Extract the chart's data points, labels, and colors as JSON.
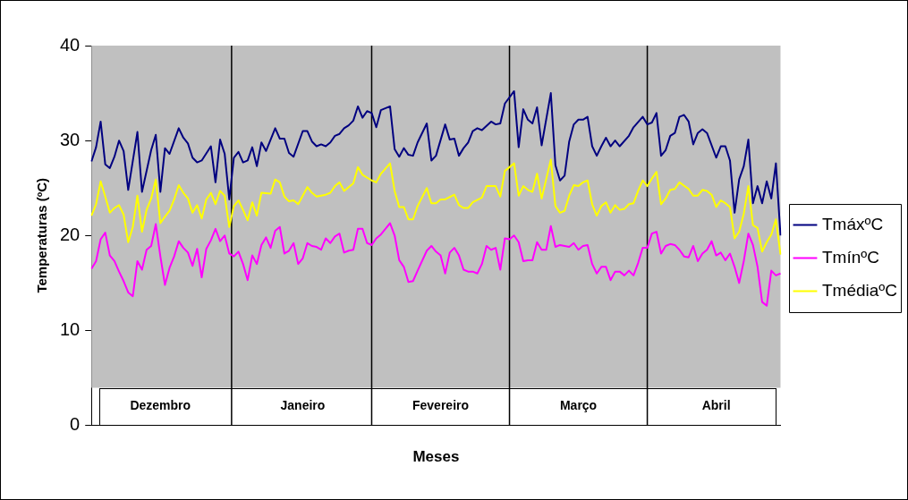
{
  "chart_data": {
    "type": "line",
    "xlabel": "Meses",
    "ylabel": "Temperaturas (ºC)",
    "legend": "right",
    "grid": false,
    "ylim": [
      0,
      40
    ],
    "yticks": [
      0,
      10,
      20,
      30,
      40
    ],
    "categories": [
      null,
      null,
      null,
      null,
      null,
      null,
      null,
      null,
      null,
      null,
      null,
      null,
      null,
      null,
      null,
      "Dezembro",
      null,
      null,
      null,
      null,
      null,
      null,
      null,
      null,
      null,
      null,
      null,
      null,
      null,
      null,
      null,
      null,
      null,
      null,
      null,
      null,
      null,
      null,
      null,
      null,
      null,
      null,
      null,
      null,
      null,
      null,
      "Janeiro",
      null,
      null,
      null,
      null,
      null,
      null,
      null,
      null,
      null,
      null,
      null,
      null,
      null,
      null,
      null,
      null,
      null,
      null,
      null,
      null,
      null,
      null,
      null,
      null,
      null,
      null,
      null,
      null,
      null,
      "Fevereiro",
      null,
      null,
      null,
      null,
      null,
      null,
      null,
      null,
      null,
      null,
      null,
      null,
      null,
      null,
      null,
      null,
      null,
      null,
      null,
      null,
      null,
      null,
      null,
      null,
      null,
      null,
      null,
      null,
      null,
      "Março",
      null,
      null,
      null,
      null,
      null,
      null,
      null,
      null,
      null,
      null,
      null,
      null,
      null,
      null,
      null,
      null,
      null,
      null,
      null,
      null,
      null,
      null,
      null,
      null,
      null,
      null,
      null,
      null,
      null,
      "Abril",
      null,
      null,
      null,
      null,
      null,
      null,
      null,
      null,
      null,
      null,
      null,
      null,
      null,
      null
    ],
    "series": [
      {
        "name": "TmáxºC",
        "color": "#000080",
        "values": [
          27.8,
          29.3,
          32,
          27.5,
          27.1,
          28.3,
          30,
          28.9,
          24.8,
          null,
          30.9,
          24.6,
          null,
          29,
          30.6,
          24.6,
          29.2,
          28.6,
          null,
          31.3,
          30.3,
          29.7,
          28.2,
          27.7,
          27.9,
          null,
          29.4,
          25.6,
          30.1,
          28.6,
          23.8,
          28.2,
          28.8,
          27.7,
          27.9,
          29.3,
          27.3,
          29.8,
          28.9,
          null,
          31.3,
          30.2,
          30.2,
          28.7,
          28.3,
          null,
          31,
          31,
          29.9,
          29.4,
          29.6,
          29.4,
          29.8,
          30.5,
          30.7,
          31.3,
          31.6,
          32.1,
          33.6,
          32.4,
          33.1,
          32.9,
          31.4,
          33.2,
          null,
          33.6,
          29.1,
          28.3,
          29.2,
          28.5,
          28.4,
          29.8,
          null,
          31.8,
          27.9,
          28.4,
          null,
          31.7,
          30.1,
          30.2,
          28.4,
          29.2,
          29.8,
          31,
          31.3,
          31.1,
          null,
          32,
          31.7,
          31.8,
          33.9,
          null,
          35.2,
          29.3,
          33.3,
          32.2,
          31.8,
          33.5,
          29.5,
          null,
          35,
          27.4,
          25.8,
          26.3,
          29.9,
          31.7,
          32.2,
          32.2,
          32.5,
          29.4,
          28.4,
          29.4,
          30.3,
          29.4,
          30,
          29.4,
          null,
          30.5,
          31.4,
          null,
          32.5,
          31.7,
          31.9,
          32.9,
          28.4,
          29,
          30.5,
          30.8,
          32.5,
          32.7,
          32,
          29.6,
          30.8,
          31.2,
          30.8,
          null,
          28.2,
          29.4,
          29.4,
          27.9,
          22.4,
          25.9,
          27.3,
          30.1,
          23.4,
          25.2,
          23.4,
          25.7,
          23.9,
          27.6,
          20
        ]
      },
      {
        "name": "TmínºC",
        "color": "#ff00ff",
        "values": [
          16.5,
          17.3,
          19.6,
          20.3,
          17.9,
          17.3,
          16.2,
          15.2,
          14,
          13.6,
          17.3,
          16.4,
          18.5,
          18.9,
          21.2,
          17.8,
          14.8,
          16.6,
          17.8,
          19.4,
          18.7,
          18.2,
          16.8,
          18.6,
          15.6,
          18.6,
          19.5,
          20.7,
          19.4,
          20,
          18.1,
          17.8,
          18.3,
          17,
          15.3,
          17.9,
          17,
          19,
          19.8,
          18.7,
          20.5,
          20.9,
          18.1,
          18.4,
          19.2,
          17,
          17.6,
          19.2,
          18.9,
          18.8,
          18.5,
          19.7,
          19.2,
          19.9,
          20.2,
          18.2,
          18.4,
          18.5,
          20.7,
          20.7,
          19.2,
          19,
          19.7,
          20.1,
          null,
          21.3,
          20,
          17.4,
          16.7,
          15.1,
          15.2,
          16.3,
          null,
          18.4,
          18.9,
          18.3,
          17.9,
          16,
          18.2,
          18.7,
          17.9,
          16.4,
          16.2,
          16.2,
          16,
          17,
          18.9,
          18.5,
          18.7,
          16.4,
          19.7,
          19.6,
          20,
          19.3,
          17.3,
          17.4,
          17.4,
          19.3,
          18.5,
          18.5,
          21,
          18.8,
          19,
          null,
          18.8,
          19.2,
          18.5,
          18.9,
          19,
          17,
          16,
          16.7,
          16.7,
          15.3,
          16.2,
          16.2,
          15.8,
          16.3,
          15.8,
          17.1,
          18.7,
          18.7,
          20.2,
          20.4,
          18.1,
          18.9,
          19.1,
          19,
          18.5,
          17.8,
          17.7,
          18.9,
          17.3,
          18.1,
          18.5,
          19.4,
          17.9,
          18.2,
          17.4,
          18.1,
          16.7,
          15,
          17.3,
          20.2,
          19,
          16.7,
          13,
          12.6,
          16.3,
          15.8,
          16
        ]
      },
      {
        "name": "TmédiaºC",
        "color": "#ffff00",
        "values": [
          22.1,
          23.3,
          25.7,
          24.1,
          22.4,
          22.9,
          23.2,
          22.2,
          19.3,
          20.9,
          24.2,
          20.4,
          22.7,
          23.9,
          25.9,
          21.3,
          22,
          22.6,
          23.8,
          25.3,
          24.5,
          23.9,
          22.4,
          23.2,
          21.8,
          23.8,
          24.5,
          23.3,
          24.7,
          24.2,
          20.9,
          23.1,
          23.7,
          22.7,
          21.6,
          23.5,
          22.1,
          24.5,
          null,
          24.4,
          25.9,
          25.6,
          24.1,
          23.6,
          23.7,
          23.3,
          24.2,
          25.1,
          24.5,
          24.1,
          null,
          24.3,
          24.5,
          25.2,
          25.6,
          24.7,
          null,
          25.5,
          27.2,
          26.4,
          null,
          25.8,
          25.6,
          26.5,
          null,
          27.6,
          24.7,
          23,
          23,
          21.7,
          21.7,
          23.1,
          null,
          25,
          23.4,
          23.4,
          23.8,
          23.8,
          null,
          24.3,
          23.2,
          22.9,
          22.9,
          23.5,
          null,
          24,
          25.2,
          null,
          25.2,
          24.1,
          26.8,
          null,
          27.6,
          24.2,
          25.2,
          24.8,
          24.6,
          26.5,
          23.9,
          null,
          28,
          23.1,
          22.4,
          22.6,
          24.2,
          25.3,
          25.2,
          25.6,
          25.8,
          23.3,
          22.1,
          23.1,
          23.5,
          22.4,
          23.2,
          22.7,
          22.8,
          23.3,
          23.4,
          24.7,
          25.8,
          25.2,
          26,
          26.7,
          23.3,
          23.9,
          24.8,
          24.9,
          25.6,
          null,
          24.9,
          24.2,
          24.2,
          24.8,
          24.7,
          24.3,
          23,
          23.7,
          23.4,
          23,
          19.7,
          20.4,
          22.3,
          25.2,
          21.1,
          20.8,
          18.3,
          19.3,
          20.1,
          21.7,
          18
        ]
      }
    ]
  }
}
